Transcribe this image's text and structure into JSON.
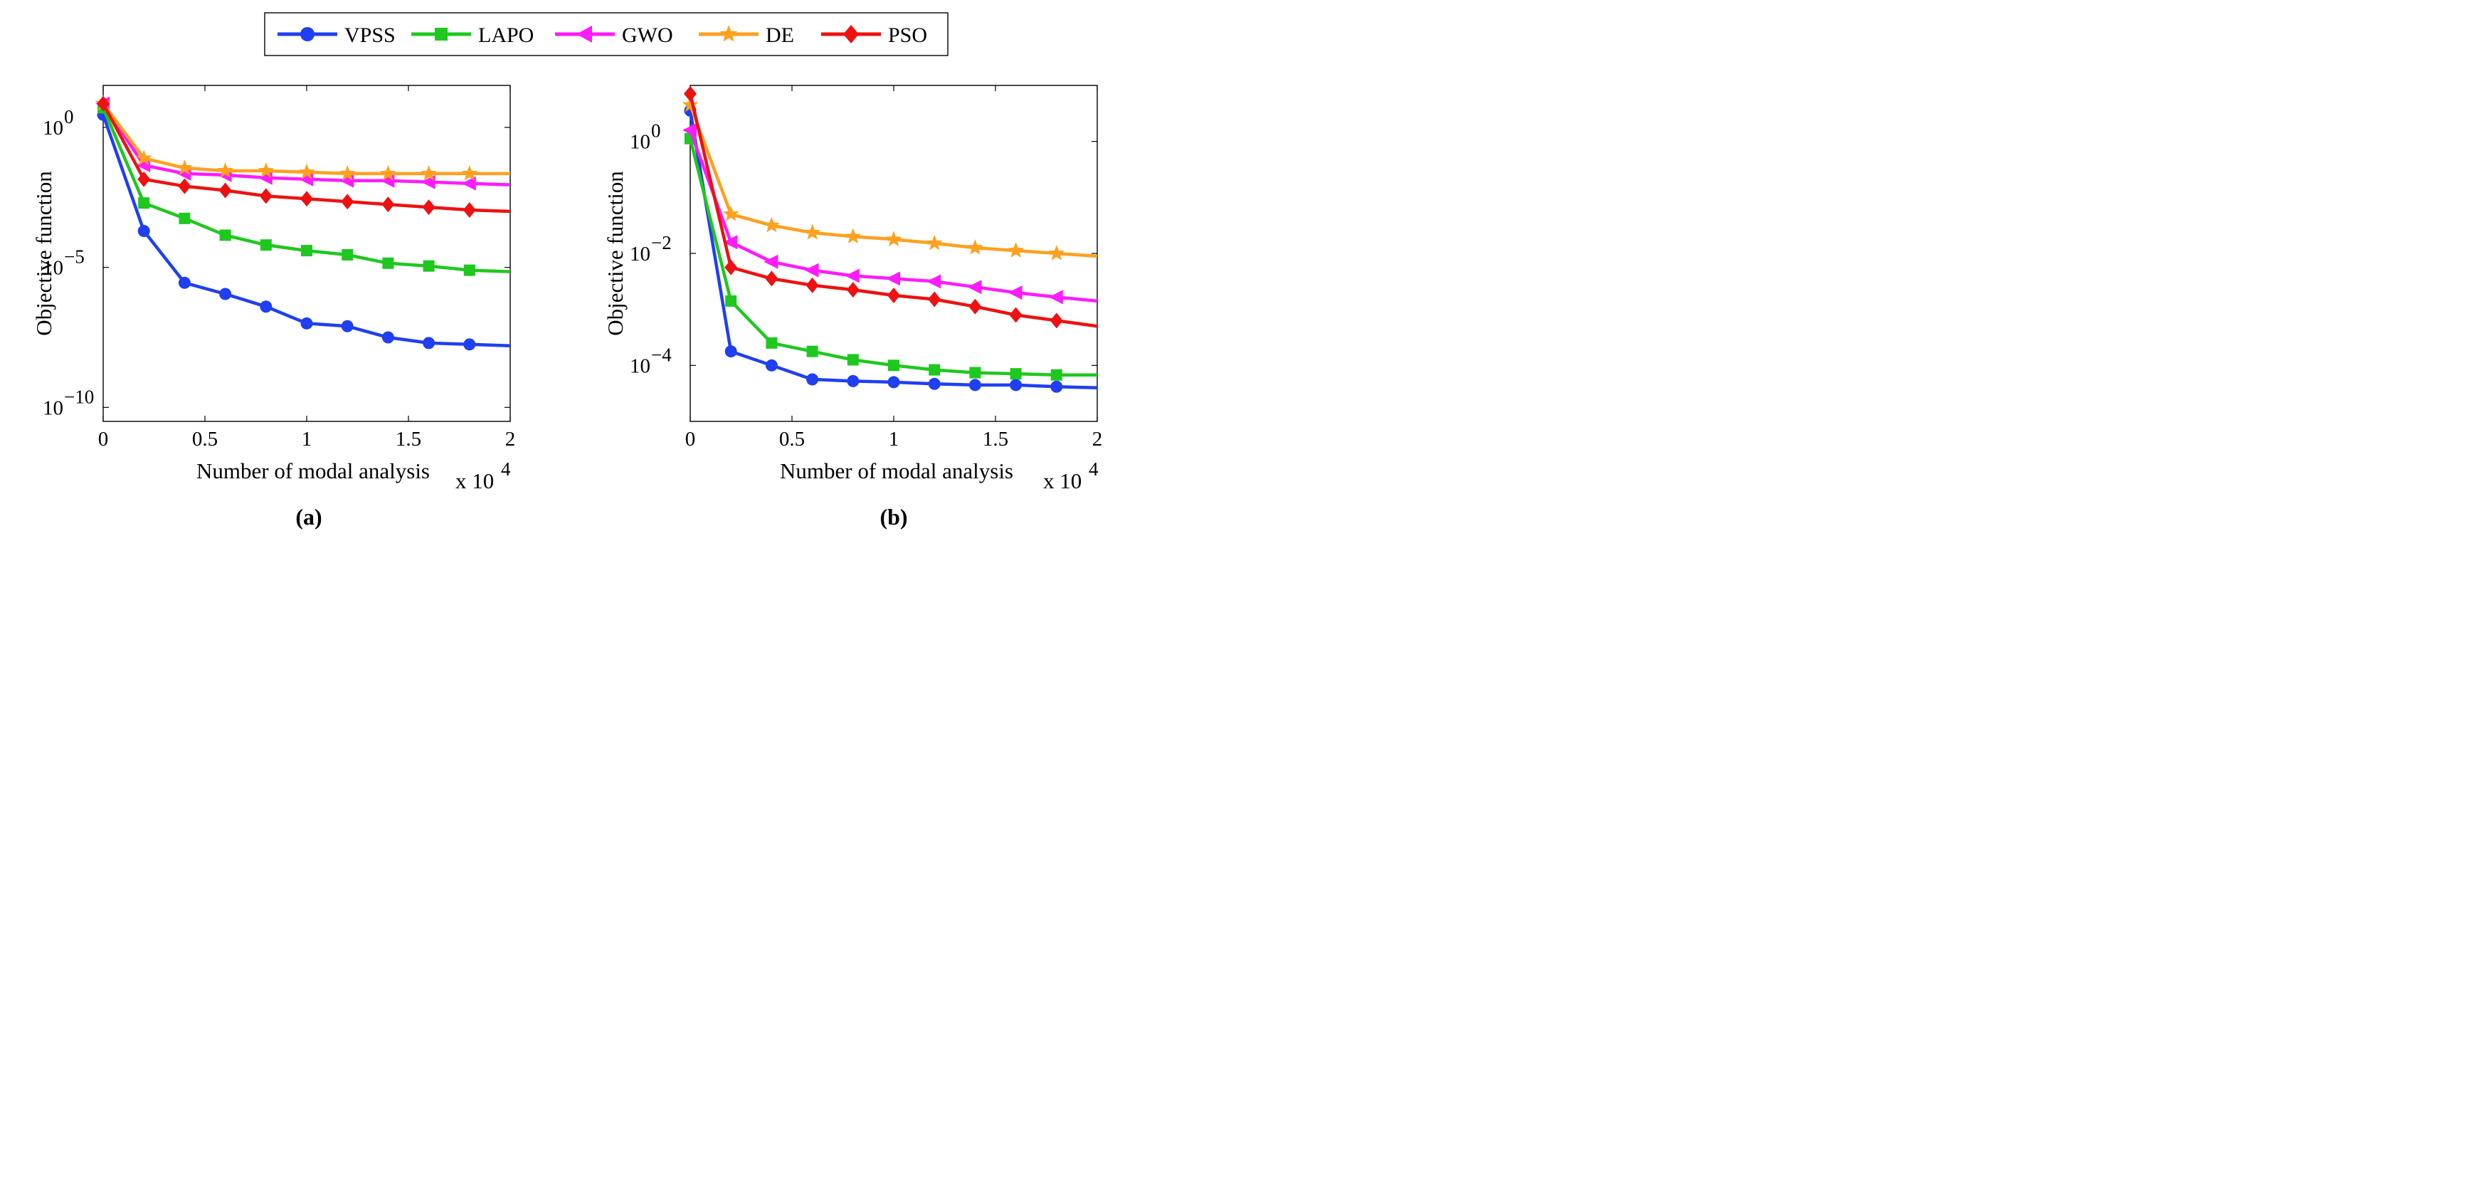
{
  "chart_data": [
    {
      "type": "line",
      "panel_label": "(a)",
      "xlabel": "Number of modal analysis",
      "x_multiplier": "x 10",
      "x_multiplier_exp": "4",
      "ylabel": "Objective function",
      "yscale": "log",
      "xlim": [
        0,
        2
      ],
      "ylim_log10": [
        -10.5,
        1.5
      ],
      "xticks": [
        0,
        0.5,
        1,
        1.5,
        2
      ],
      "xtick_labels": [
        "0",
        "0.5",
        "1",
        "1.5",
        "2"
      ],
      "yticks_log10": [
        0,
        -5,
        -10
      ],
      "ytick_bases": [
        "10",
        "10",
        "10"
      ],
      "ytick_exps": [
        "0",
        "−5",
        "−10"
      ],
      "x": [
        0,
        0.2,
        0.4,
        0.6,
        0.8,
        1.0,
        1.2,
        1.4,
        1.6,
        1.8,
        2.0
      ],
      "series": [
        {
          "name": "VPSS",
          "log10_values": [
            0.45,
            -3.7,
            -5.55,
            -5.95,
            -6.4,
            -7.0,
            -7.1,
            -7.5,
            -7.7,
            -7.75,
            -7.8
          ]
        },
        {
          "name": "LAPO",
          "log10_values": [
            0.7,
            -2.7,
            -3.25,
            -3.85,
            -4.2,
            -4.4,
            -4.55,
            -4.85,
            -4.95,
            -5.1,
            -5.15
          ]
        },
        {
          "name": "GWO",
          "log10_values": [
            0.85,
            -1.35,
            -1.65,
            -1.7,
            -1.8,
            -1.85,
            -1.9,
            -1.9,
            -1.95,
            -2.0,
            -2.05
          ]
        },
        {
          "name": "DE",
          "log10_values": [
            0.85,
            -1.1,
            -1.45,
            -1.55,
            -1.55,
            -1.6,
            -1.65,
            -1.65,
            -1.65,
            -1.65,
            -1.65
          ]
        },
        {
          "name": "PSO",
          "log10_values": [
            0.85,
            -1.85,
            -2.1,
            -2.25,
            -2.45,
            -2.55,
            -2.65,
            -2.75,
            -2.85,
            -2.95,
            -3.0
          ]
        }
      ]
    },
    {
      "type": "line",
      "panel_label": "(b)",
      "xlabel": "Number of modal analysis",
      "x_multiplier": "x 10",
      "x_multiplier_exp": "4",
      "ylabel": "Objective function",
      "yscale": "log",
      "xlim": [
        0,
        2
      ],
      "ylim_log10": [
        -5,
        1
      ],
      "xticks": [
        0,
        0.5,
        1,
        1.5,
        2
      ],
      "xtick_labels": [
        "0",
        "0.5",
        "1",
        "1.5",
        "2"
      ],
      "yticks_log10": [
        0,
        -2,
        -4
      ],
      "ytick_bases": [
        "10",
        "10",
        "10"
      ],
      "ytick_exps": [
        "0",
        "−2",
        "−4"
      ],
      "x": [
        0,
        0.2,
        0.4,
        0.6,
        0.8,
        1.0,
        1.2,
        1.4,
        1.6,
        1.8,
        2.0
      ],
      "series": [
        {
          "name": "VPSS",
          "log10_values": [
            0.55,
            -3.75,
            -4.0,
            -4.25,
            -4.28,
            -4.3,
            -4.33,
            -4.35,
            -4.35,
            -4.38,
            -4.4
          ]
        },
        {
          "name": "LAPO",
          "log10_values": [
            0.05,
            -2.85,
            -3.6,
            -3.75,
            -3.9,
            -4.0,
            -4.08,
            -4.13,
            -4.15,
            -4.17,
            -4.17
          ]
        },
        {
          "name": "GWO",
          "log10_values": [
            0.2,
            -1.8,
            -2.15,
            -2.3,
            -2.4,
            -2.45,
            -2.5,
            -2.6,
            -2.7,
            -2.78,
            -2.85
          ]
        },
        {
          "name": "DE",
          "log10_values": [
            0.65,
            -1.3,
            -1.5,
            -1.63,
            -1.7,
            -1.75,
            -1.82,
            -1.9,
            -1.95,
            -2.0,
            -2.05
          ]
        },
        {
          "name": "PSO",
          "log10_values": [
            0.85,
            -2.25,
            -2.45,
            -2.57,
            -2.65,
            -2.75,
            -2.82,
            -2.95,
            -3.1,
            -3.2,
            -3.3
          ]
        }
      ]
    }
  ],
  "legend": {
    "entries": [
      {
        "name": "VPSS",
        "color": "#1f3ff0",
        "marker": "circle-icon"
      },
      {
        "name": "LAPO",
        "color": "#1ec81e",
        "marker": "square-icon"
      },
      {
        "name": "GWO",
        "color": "#ff1aff",
        "marker": "left-triangle-icon"
      },
      {
        "name": "DE",
        "color": "#ffa01e",
        "marker": "star-icon"
      },
      {
        "name": "PSO",
        "color": "#ee1111",
        "marker": "diamond-icon"
      }
    ]
  }
}
